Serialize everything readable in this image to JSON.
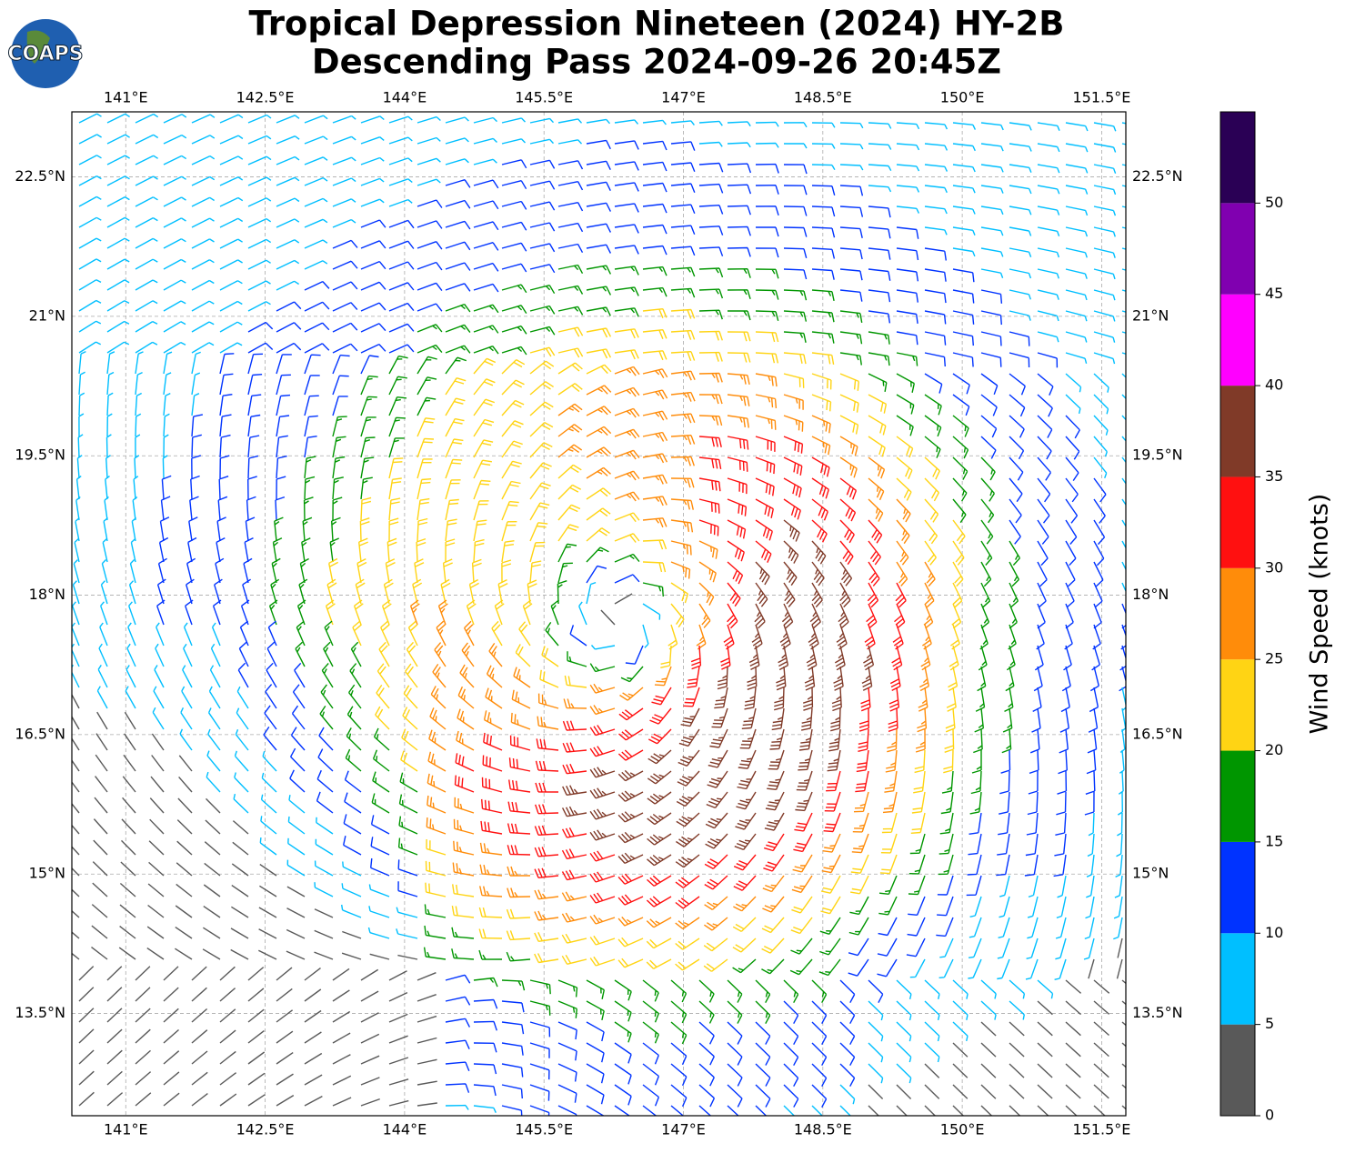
{
  "map": {
    "title": "Tropical Depression Nineteen (2024) HY-2B",
    "subtitle": "Descending Pass 2024-09-26 20:45Z",
    "logo": "COAPS",
    "lonlim": [
      140.42,
      151.76
    ],
    "latlim": [
      12.4,
      23.2
    ],
    "lonticks": [
      {
        "value": 141,
        "label": "141°E"
      },
      {
        "value": 142.5,
        "label": "142.5°E"
      },
      {
        "value": 144,
        "label": "144°E"
      },
      {
        "value": 145.5,
        "label": "145.5°E"
      },
      {
        "value": 147,
        "label": "147°E"
      },
      {
        "value": 148.5,
        "label": "148.5°E"
      },
      {
        "value": 150,
        "label": "150°E"
      },
      {
        "value": 151.5,
        "label": "151.5°E"
      }
    ],
    "latticks": [
      {
        "value": 13.5,
        "label": "13.5°N"
      },
      {
        "value": 15,
        "label": "15°N"
      },
      {
        "value": 16.5,
        "label": "16.5°N"
      },
      {
        "value": 18,
        "label": "18°N"
      },
      {
        "value": 19.5,
        "label": "19.5°N"
      },
      {
        "value": 21,
        "label": "21°N"
      },
      {
        "value": 22.5,
        "label": "22.5°N"
      }
    ],
    "grid": true,
    "colorbar": {
      "label": "Wind Speed (knots)",
      "bounds": [
        0,
        5,
        10,
        15,
        20,
        25,
        30,
        35,
        40,
        45,
        50,
        55
      ],
      "colors": [
        "#595959",
        "#00bfff",
        "#0033ff",
        "#009600",
        "#ffd414",
        "#ff8c0a",
        "#ff1010",
        "#803a28",
        "#ff00ff",
        "#8000b0",
        "#2a0055"
      ],
      "ticks": [
        0,
        5,
        10,
        15,
        20,
        25,
        30,
        35,
        40,
        45,
        50
      ]
    }
  }
}
